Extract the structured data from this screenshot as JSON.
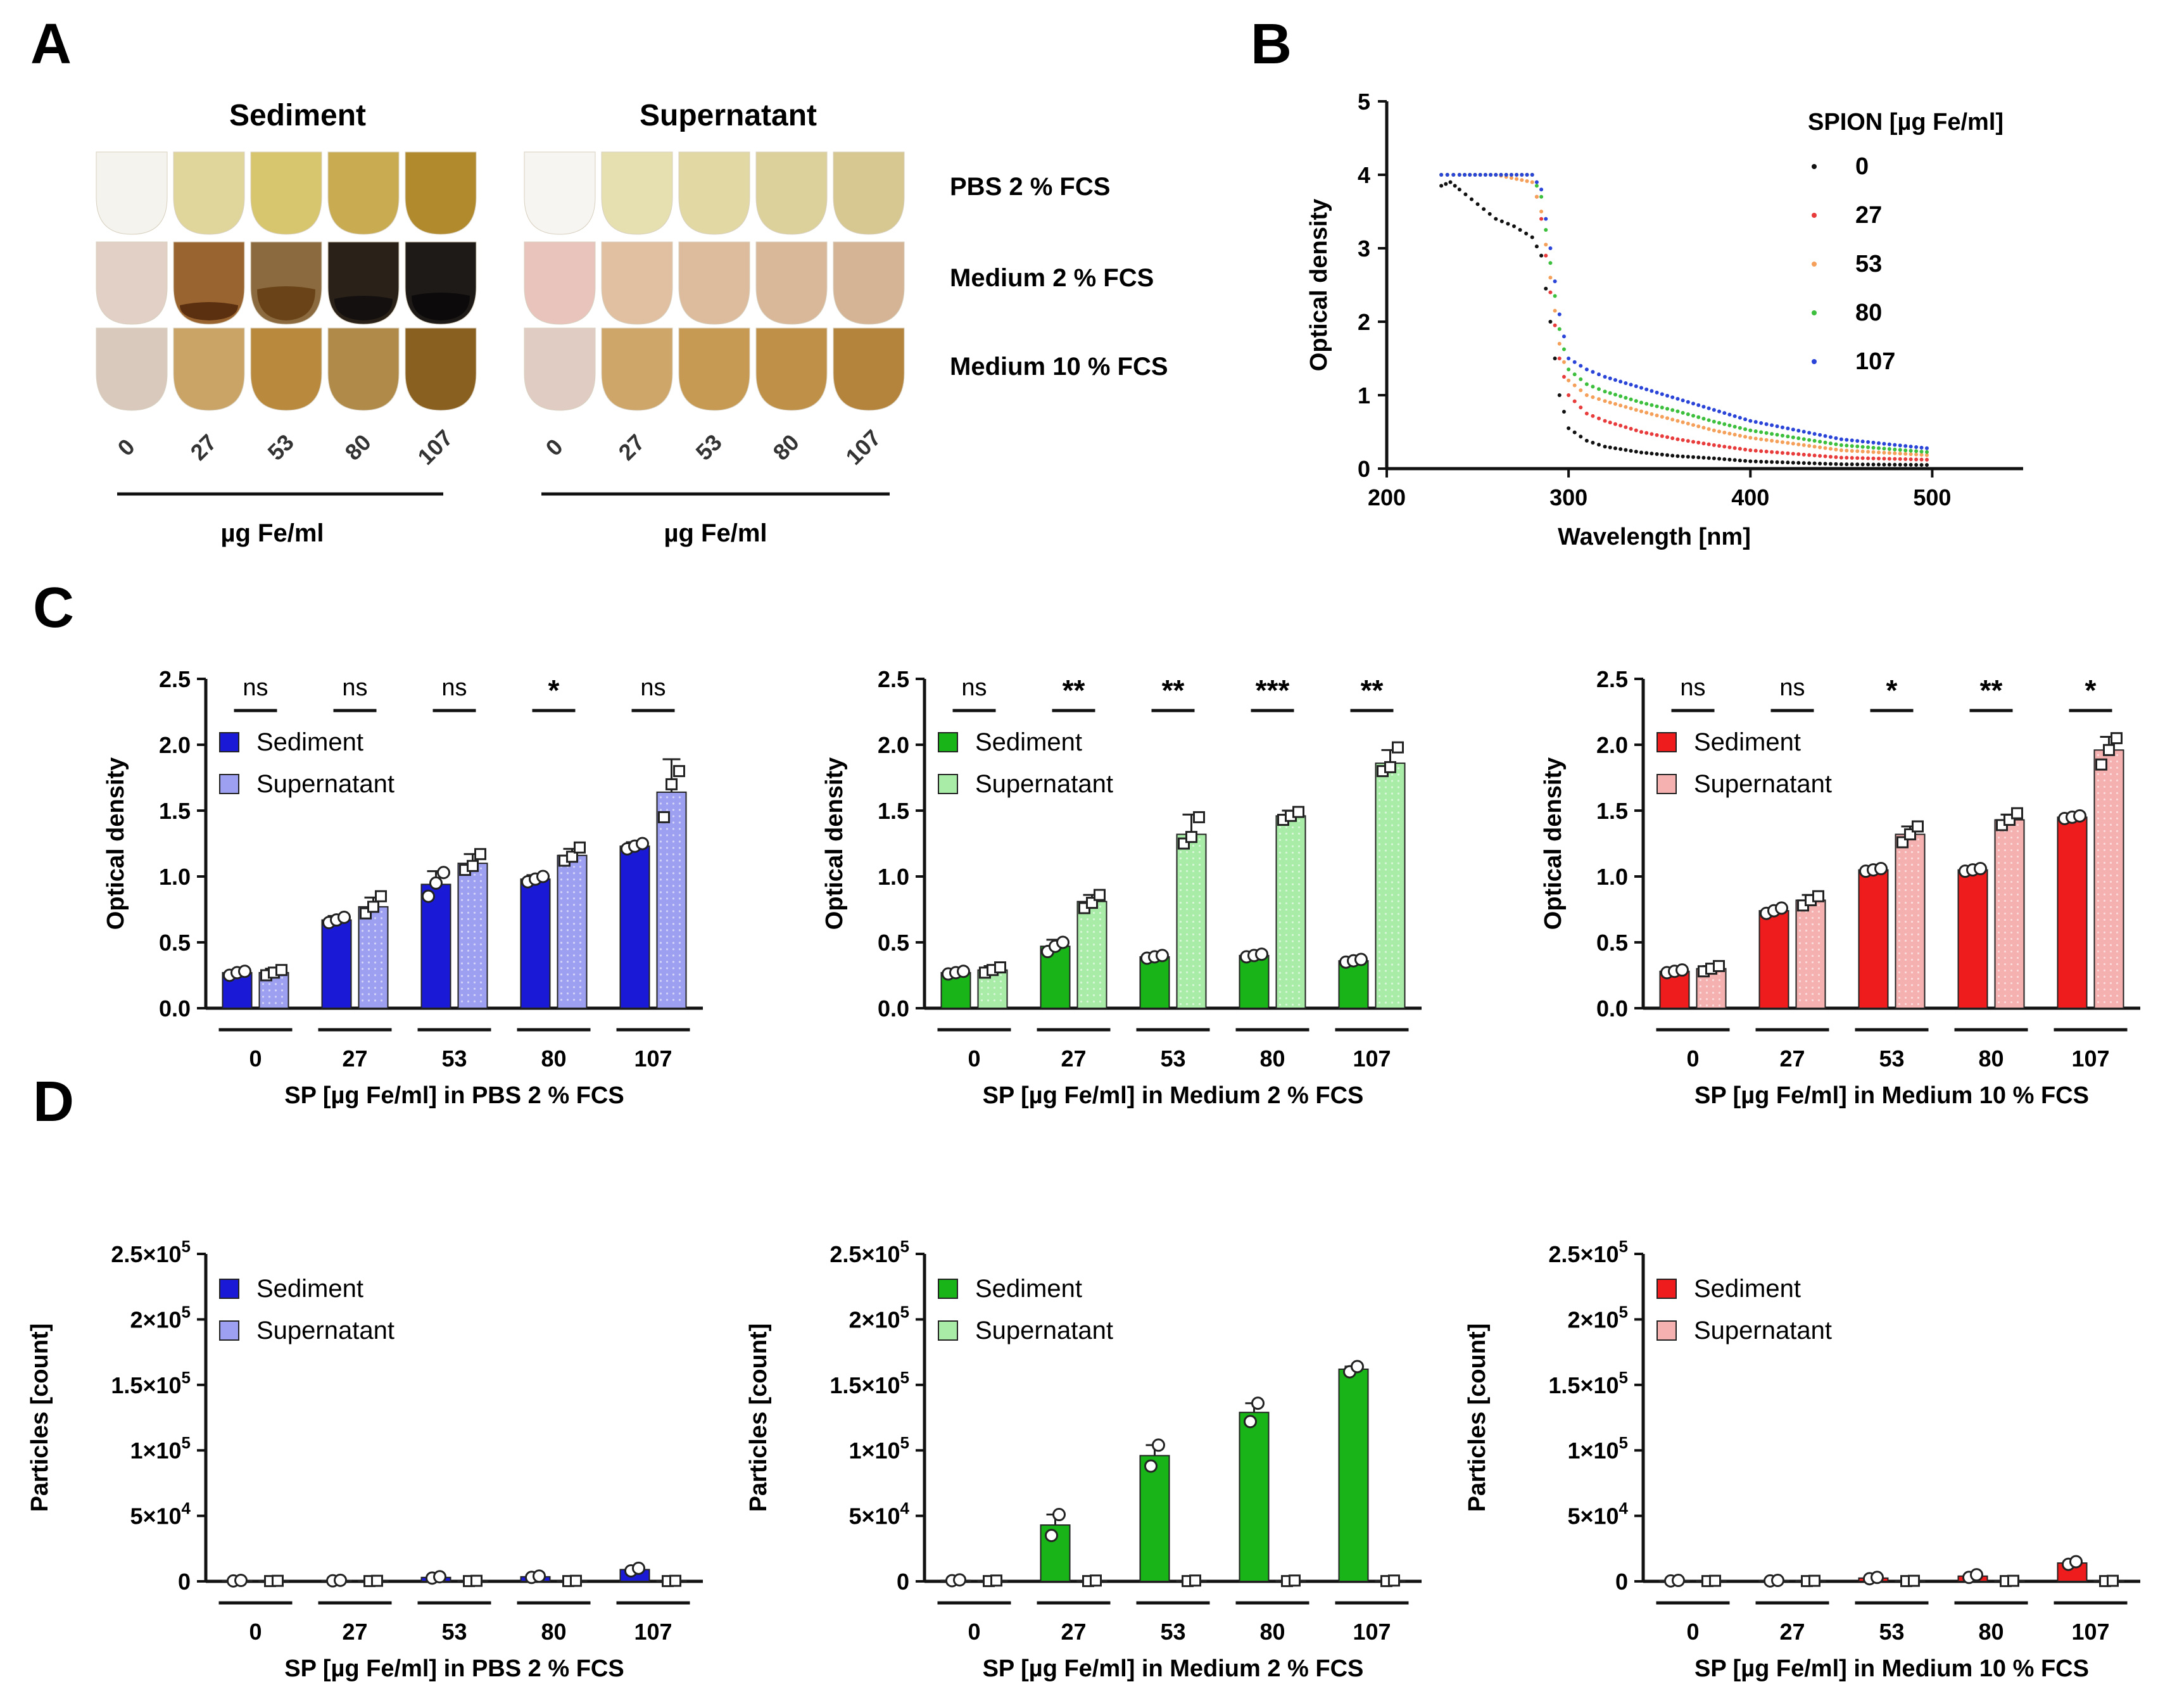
{
  "panels": {
    "a": "A",
    "b": "B",
    "c": "C",
    "d": "D"
  },
  "panel_a": {
    "sediment_title": "Sediment",
    "supernatant_title": "Supernatant",
    "rows": [
      "PBS 2 % FCS",
      "Medium 2 % FCS",
      "Medium 10 % FCS"
    ],
    "concentrations": [
      "0",
      "27",
      "53",
      "80",
      "107"
    ],
    "unit_label": "µg Fe/ml",
    "colors": {
      "sediment": [
        [
          "#f4f3ee",
          "#e0d59a",
          "#d7c66e",
          "#c9ac52",
          "#b08a2c"
        ],
        [
          "#e2cfc6",
          "#9a6430",
          "#8a6a3e",
          "#2a2218",
          "#1e1a18"
        ],
        [
          "#d9c9bd",
          "#c9a466",
          "#b98a3e",
          "#b08a48",
          "#8a6020"
        ]
      ],
      "supernatant": [
        [
          "#f6f5f1",
          "#e6e0b0",
          "#e1d8a4",
          "#dcd19a",
          "#d6c890"
        ],
        [
          "#e8c4bc",
          "#e0c0a0",
          "#dcbc9c",
          "#d8b898",
          "#d4b494"
        ],
        [
          "#e0ccc2",
          "#cfa66a",
          "#c69a52",
          "#bf9148",
          "#b4843c"
        ]
      ]
    }
  },
  "chart_data": [
    {
      "id": "B",
      "type": "scatter",
      "title": "",
      "xlabel": "Wavelength [nm]",
      "ylabel": "Optical density",
      "xlim": [
        200,
        550
      ],
      "ylim": [
        0,
        5
      ],
      "xticks": [
        200,
        300,
        400,
        500
      ],
      "yticks": [
        0,
        1,
        2,
        3,
        4,
        5
      ],
      "legend_title": "SPION [µg Fe/ml]",
      "series": [
        {
          "name": "0",
          "color": "#111111",
          "x": [
            230,
            235,
            240,
            250,
            260,
            270,
            280,
            285,
            290,
            295,
            300,
            310,
            320,
            340,
            360,
            380,
            400,
            450,
            500
          ],
          "y": [
            3.85,
            3.9,
            3.8,
            3.6,
            3.4,
            3.3,
            3.15,
            2.9,
            2.0,
            1.0,
            0.55,
            0.38,
            0.3,
            0.22,
            0.17,
            0.14,
            0.1,
            0.06,
            0.05
          ]
        },
        {
          "name": "27",
          "color": "#e83b3b",
          "x": [
            230,
            240,
            260,
            280,
            285,
            290,
            295,
            300,
            310,
            320,
            340,
            360,
            380,
            400,
            450,
            500
          ],
          "y": [
            4.0,
            4.0,
            4.0,
            4.0,
            3.4,
            2.4,
            1.5,
            1.0,
            0.75,
            0.65,
            0.5,
            0.4,
            0.32,
            0.25,
            0.15,
            0.12
          ]
        },
        {
          "name": "53",
          "color": "#f5a05a",
          "x": [
            230,
            240,
            260,
            280,
            285,
            290,
            295,
            300,
            310,
            320,
            340,
            360,
            380,
            400,
            450,
            500
          ],
          "y": [
            4.0,
            4.0,
            4.0,
            3.9,
            3.5,
            2.6,
            1.7,
            1.2,
            1.0,
            0.92,
            0.78,
            0.65,
            0.52,
            0.42,
            0.25,
            0.18
          ]
        },
        {
          "name": "80",
          "color": "#3cbf3c",
          "x": [
            230,
            240,
            260,
            280,
            285,
            290,
            295,
            300,
            310,
            320,
            340,
            360,
            380,
            400,
            450,
            500
          ],
          "y": [
            4.0,
            4.0,
            4.0,
            4.0,
            3.7,
            2.8,
            1.9,
            1.35,
            1.15,
            1.05,
            0.9,
            0.78,
            0.64,
            0.52,
            0.32,
            0.22
          ]
        },
        {
          "name": "107",
          "color": "#2a44d8",
          "x": [
            230,
            240,
            260,
            280,
            285,
            290,
            295,
            300,
            310,
            320,
            340,
            360,
            380,
            400,
            450,
            500
          ],
          "y": [
            4.0,
            4.0,
            4.0,
            4.0,
            3.8,
            3.0,
            2.1,
            1.5,
            1.35,
            1.25,
            1.1,
            0.95,
            0.8,
            0.65,
            0.4,
            0.27
          ]
        }
      ]
    },
    {
      "id": "C1",
      "type": "bar",
      "xlabel": "SP [µg Fe/ml] in PBS 2 % FCS",
      "ylabel": "Optical density",
      "categories": [
        "0",
        "27",
        "53",
        "80",
        "107"
      ],
      "ylim": [
        0,
        2.5
      ],
      "yticks": [
        "0.0",
        "0.5",
        "1.0",
        "1.5",
        "2.0",
        "2.5"
      ],
      "significance": [
        "ns",
        "ns",
        "ns",
        "*",
        "ns"
      ],
      "series": [
        {
          "name": "Sediment",
          "color": "#1a1ad6",
          "values": [
            0.27,
            0.67,
            0.94,
            0.98,
            1.23
          ],
          "err": [
            0.02,
            0.03,
            0.1,
            0.03,
            0.03
          ],
          "points": [
            [
              0.25,
              0.27,
              0.28
            ],
            [
              0.65,
              0.67,
              0.69
            ],
            [
              0.85,
              0.95,
              1.03
            ],
            [
              0.96,
              0.98,
              1.0
            ],
            [
              1.21,
              1.23,
              1.25
            ]
          ]
        },
        {
          "name": "Supernatant",
          "color": "#9d9ff0",
          "values": [
            0.27,
            0.77,
            1.1,
            1.16,
            1.64
          ],
          "err": [
            0.03,
            0.07,
            0.07,
            0.05,
            0.25
          ],
          "points": [
            [
              0.25,
              0.27,
              0.29
            ],
            [
              0.72,
              0.77,
              0.85
            ],
            [
              1.05,
              1.08,
              1.17
            ],
            [
              1.12,
              1.15,
              1.22
            ],
            [
              1.45,
              1.7,
              1.8
            ]
          ]
        }
      ]
    },
    {
      "id": "C2",
      "type": "bar",
      "xlabel": "SP [µg Fe/ml] in Medium 2 % FCS",
      "ylabel": "Optical density",
      "categories": [
        "0",
        "27",
        "53",
        "80",
        "107"
      ],
      "ylim": [
        0,
        2.5
      ],
      "yticks": [
        "0.0",
        "0.5",
        "1.0",
        "1.5",
        "2.0",
        "2.5"
      ],
      "significance": [
        "ns",
        "**",
        "**",
        "***",
        "**"
      ],
      "series": [
        {
          "name": "Sediment",
          "color": "#18b418",
          "values": [
            0.27,
            0.47,
            0.39,
            0.4,
            0.36
          ],
          "err": [
            0.01,
            0.05,
            0.02,
            0.02,
            0.01
          ],
          "points": [
            [
              0.26,
              0.27,
              0.28
            ],
            [
              0.43,
              0.47,
              0.5
            ],
            [
              0.38,
              0.39,
              0.4
            ],
            [
              0.39,
              0.4,
              0.41
            ],
            [
              0.35,
              0.36,
              0.37
            ]
          ]
        },
        {
          "name": "Supernatant",
          "color": "#a8eca8",
          "values": [
            0.29,
            0.81,
            1.32,
            1.46,
            1.86
          ],
          "err": [
            0.03,
            0.05,
            0.15,
            0.04,
            0.1
          ],
          "points": [
            [
              0.27,
              0.29,
              0.31
            ],
            [
              0.76,
              0.8,
              0.86
            ],
            [
              1.25,
              1.3,
              1.45
            ],
            [
              1.43,
              1.46,
              1.49
            ],
            [
              1.8,
              1.83,
              1.98
            ]
          ]
        }
      ]
    },
    {
      "id": "C3",
      "type": "bar",
      "xlabel": "SP [µg Fe/ml] in Medium 10 % FCS",
      "ylabel": "Optical density",
      "categories": [
        "0",
        "27",
        "53",
        "80",
        "107"
      ],
      "ylim": [
        0,
        2.5
      ],
      "yticks": [
        "0.0",
        "0.5",
        "1.0",
        "1.5",
        "2.0",
        "2.5"
      ],
      "significance": [
        "ns",
        "ns",
        "*",
        "**",
        "*"
      ],
      "series": [
        {
          "name": "Sediment",
          "color": "#ee1c1c",
          "values": [
            0.28,
            0.74,
            1.05,
            1.05,
            1.45
          ],
          "err": [
            0.01,
            0.02,
            0.01,
            0.01,
            0.01
          ],
          "points": [
            [
              0.27,
              0.28,
              0.29
            ],
            [
              0.72,
              0.74,
              0.76
            ],
            [
              1.04,
              1.05,
              1.06
            ],
            [
              1.04,
              1.05,
              1.06
            ],
            [
              1.44,
              1.45,
              1.46
            ]
          ]
        },
        {
          "name": "Supernatant",
          "color": "#f5b0b0",
          "values": [
            0.3,
            0.82,
            1.32,
            1.43,
            1.96
          ],
          "err": [
            0.02,
            0.04,
            0.06,
            0.04,
            0.1
          ],
          "points": [
            [
              0.28,
              0.3,
              0.32
            ],
            [
              0.78,
              0.82,
              0.85
            ],
            [
              1.26,
              1.32,
              1.38
            ],
            [
              1.39,
              1.43,
              1.48
            ],
            [
              1.85,
              1.96,
              2.05
            ]
          ]
        }
      ]
    },
    {
      "id": "D1",
      "type": "bar",
      "xlabel": "SP [µg Fe/ml] in PBS 2 % FCS",
      "ylabel": "Particles [count]",
      "categories": [
        "0",
        "27",
        "53",
        "80",
        "107"
      ],
      "ylim": [
        0,
        250000
      ],
      "ytick_values": [
        0,
        50000,
        100000,
        150000,
        200000,
        250000
      ],
      "ytick_mantissa": [
        "0",
        "5×10",
        "1×10",
        "1.5×10",
        "2×10",
        "2.5×10"
      ],
      "ytick_exp": [
        "",
        "4",
        "5",
        "5",
        "5",
        "5"
      ],
      "series": [
        {
          "name": "Sediment",
          "color": "#1a1ad6",
          "values": [
            500,
            600,
            3000,
            3500,
            9000
          ],
          "points": [
            [
              300,
              700
            ],
            [
              400,
              800
            ],
            [
              2500,
              3500
            ],
            [
              3000,
              4000
            ],
            [
              8000,
              10000
            ]
          ]
        },
        {
          "name": "Supernatant",
          "color": "#9d9ff0",
          "values": [
            300,
            300,
            300,
            300,
            300
          ],
          "points": [
            [
              200,
              400
            ],
            [
              200,
              400
            ],
            [
              200,
              400
            ],
            [
              200,
              400
            ],
            [
              200,
              400
            ]
          ]
        }
      ]
    },
    {
      "id": "D2",
      "type": "bar",
      "xlabel": "SP [µg Fe/ml] in Medium 2 % FCS",
      "ylabel": "Particles [count]",
      "categories": [
        "0",
        "27",
        "53",
        "80",
        "107"
      ],
      "ylim": [
        0,
        250000
      ],
      "ytick_values": [
        0,
        50000,
        100000,
        150000,
        200000,
        250000
      ],
      "ytick_mantissa": [
        "0",
        "5×10",
        "1×10",
        "1.5×10",
        "2×10",
        "2.5×10"
      ],
      "ytick_exp": [
        "",
        "4",
        "5",
        "5",
        "5",
        "5"
      ],
      "series": [
        {
          "name": "Sediment",
          "color": "#18b418",
          "values": [
            800,
            43000,
            96000,
            129000,
            162000
          ],
          "err": [
            300,
            8000,
            8000,
            7000,
            2000
          ],
          "points": [
            [
              500,
              1100
            ],
            [
              35000,
              51000
            ],
            [
              88000,
              104000
            ],
            [
              122000,
              136000
            ],
            [
              160000,
              164000
            ]
          ]
        },
        {
          "name": "Supernatant",
          "color": "#a8eca8",
          "values": [
            400,
            400,
            400,
            400,
            400
          ],
          "points": [
            [
              200,
              600
            ],
            [
              200,
              600
            ],
            [
              200,
              600
            ],
            [
              200,
              600
            ],
            [
              200,
              600
            ]
          ]
        }
      ]
    },
    {
      "id": "D3",
      "type": "bar",
      "xlabel": "SP [µg Fe/ml] in Medium 10 % FCS",
      "ylabel": "Particles [count]",
      "categories": [
        "0",
        "27",
        "53",
        "80",
        "107"
      ],
      "ylim": [
        0,
        250000
      ],
      "ytick_values": [
        0,
        50000,
        100000,
        150000,
        200000,
        250000
      ],
      "ytick_mantissa": [
        "0",
        "5×10",
        "1×10",
        "1.5×10",
        "2×10",
        "2.5×10"
      ],
      "ytick_exp": [
        "",
        "4",
        "5",
        "5",
        "5",
        "5"
      ],
      "series": [
        {
          "name": "Sediment",
          "color": "#ee1c1c",
          "values": [
            500,
            500,
            2500,
            4000,
            14000
          ],
          "points": [
            [
              300,
              700
            ],
            [
              300,
              700
            ],
            [
              2000,
              3000
            ],
            [
              3000,
              5000
            ],
            [
              13000,
              15000
            ]
          ]
        },
        {
          "name": "Supernatant",
          "color": "#f5b0b0",
          "values": [
            300,
            300,
            300,
            300,
            300
          ],
          "points": [
            [
              200,
              400
            ],
            [
              200,
              400
            ],
            [
              200,
              400
            ],
            [
              200,
              400
            ],
            [
              200,
              400
            ]
          ]
        }
      ]
    }
  ]
}
